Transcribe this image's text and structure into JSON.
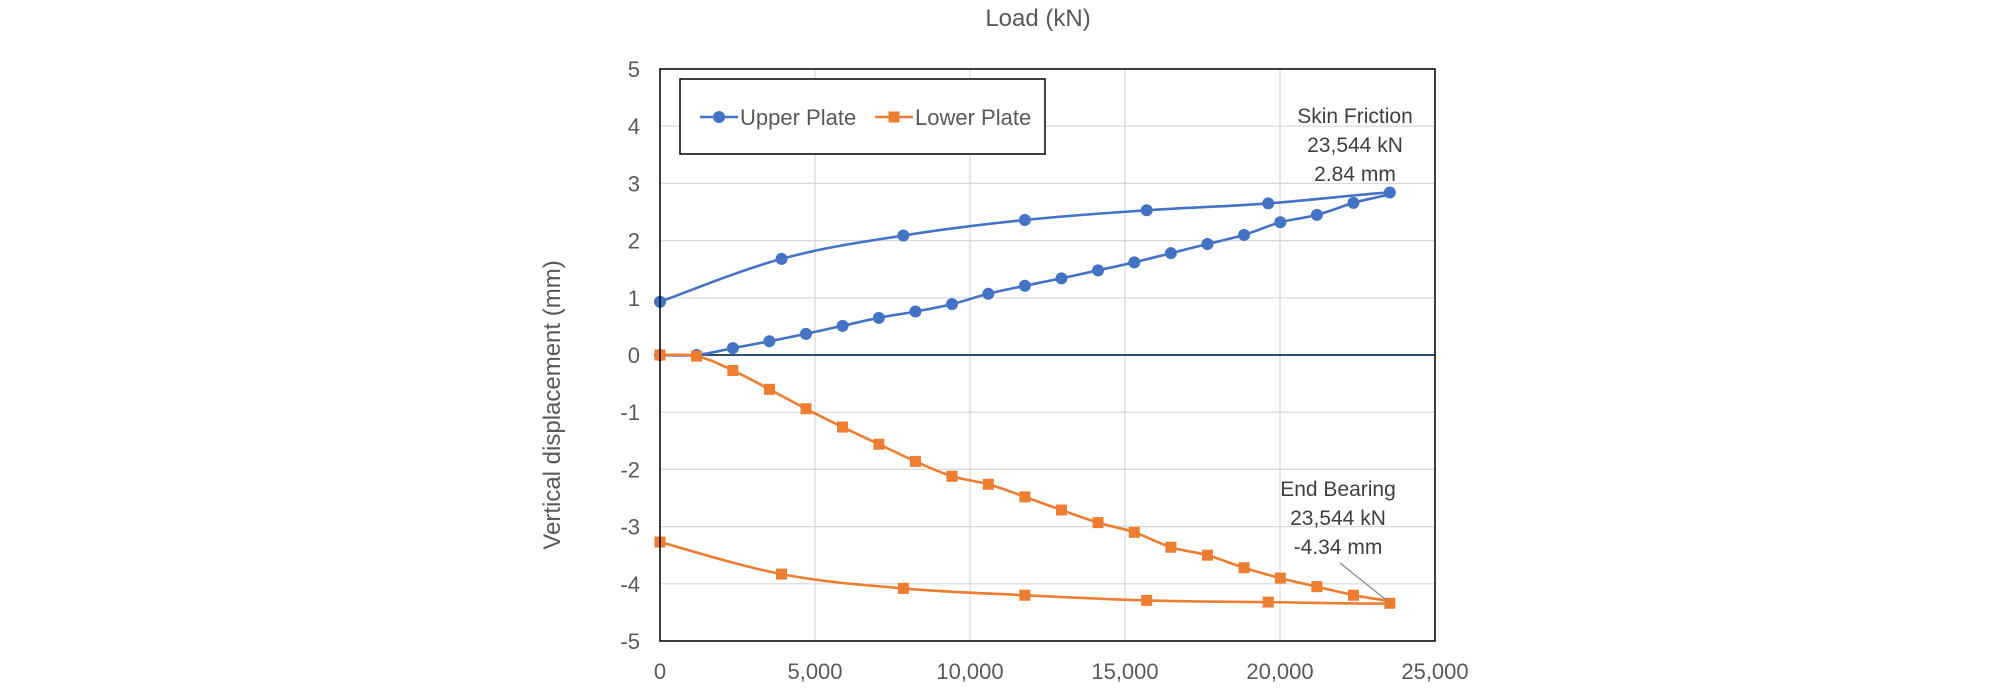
{
  "chart_data": {
    "type": "line",
    "title": "Load (kN)",
    "xlabel": "",
    "ylabel": "Vertical displacement (mm)",
    "xlim": [
      0,
      25000
    ],
    "ylim": [
      -5,
      5
    ],
    "x_ticks": [
      0,
      5000,
      10000,
      15000,
      20000,
      25000
    ],
    "x_tick_labels": [
      "0",
      "5,000",
      "10,000",
      "15,000",
      "20,000",
      "25,000"
    ],
    "y_ticks": [
      5,
      4,
      3,
      2,
      1,
      0,
      -1,
      -2,
      -3,
      -4,
      -5
    ],
    "y_tick_labels": [
      "5",
      "4",
      "3",
      "2",
      "1",
      "0",
      "-1",
      "-2",
      "-3",
      "-4",
      "-5"
    ],
    "grid": true,
    "legend_position": "top-left",
    "series": [
      {
        "name": "Upper Plate",
        "color": "#4472C4",
        "marker": "circle",
        "x": [
          0,
          1180,
          2350,
          3530,
          4710,
          5890,
          7060,
          8240,
          9420,
          10590,
          11770,
          12950,
          14130,
          15300,
          16480,
          17660,
          18840,
          20010,
          21190,
          22370,
          23544,
          19620,
          15700,
          11770,
          7850,
          3920,
          0
        ],
        "y": [
          0.0,
          0.0,
          0.12,
          0.24,
          0.37,
          0.51,
          0.65,
          0.76,
          0.89,
          1.07,
          1.21,
          1.34,
          1.48,
          1.62,
          1.78,
          1.94,
          2.1,
          2.32,
          2.45,
          2.66,
          2.84,
          2.65,
          2.53,
          2.36,
          2.09,
          1.68,
          0.93
        ]
      },
      {
        "name": "Lower Plate",
        "color": "#ED7D31",
        "marker": "square",
        "x": [
          0,
          1180,
          2350,
          3530,
          4710,
          5890,
          7060,
          8240,
          9420,
          10590,
          11770,
          12950,
          14130,
          15300,
          16480,
          17660,
          18840,
          20010,
          21190,
          22370,
          23544,
          19620,
          15700,
          11770,
          7850,
          3920,
          0
        ],
        "y": [
          0.0,
          -0.02,
          -0.27,
          -0.6,
          -0.94,
          -1.26,
          -1.56,
          -1.86,
          -2.12,
          -2.26,
          -2.48,
          -2.71,
          -2.93,
          -3.1,
          -3.36,
          -3.5,
          -3.72,
          -3.9,
          -4.05,
          -4.2,
          -4.34,
          -4.32,
          -4.29,
          -4.2,
          -4.08,
          -3.83,
          -3.27
        ]
      }
    ],
    "annotations": [
      {
        "id": "skin-friction",
        "lines": [
          "Skin Friction",
          "23,544 kN",
          "2.84 mm"
        ],
        "x": 23544,
        "y": 2.84
      },
      {
        "id": "end-bearing",
        "lines": [
          "End Bearing",
          "23,544 kN",
          "-4.34 mm"
        ],
        "x": 23544,
        "y": -4.34
      }
    ]
  }
}
